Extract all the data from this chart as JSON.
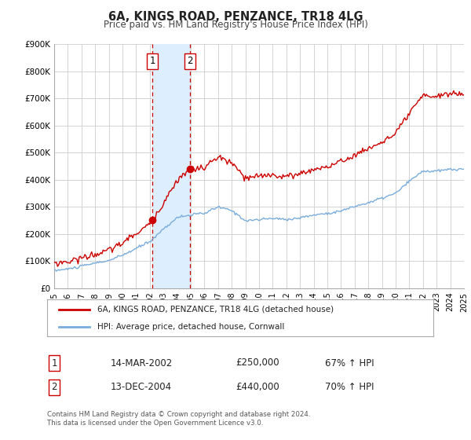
{
  "title": "6A, KINGS ROAD, PENZANCE, TR18 4LG",
  "subtitle": "Price paid vs. HM Land Registry's House Price Index (HPI)",
  "legend_line1": "6A, KINGS ROAD, PENZANCE, TR18 4LG (detached house)",
  "legend_line2": "HPI: Average price, detached house, Cornwall",
  "footer1": "Contains HM Land Registry data © Crown copyright and database right 2024.",
  "footer2": "This data is licensed under the Open Government Licence v3.0.",
  "transaction1_date": "14-MAR-2002",
  "transaction1_price": "£250,000",
  "transaction1_hpi": "67% ↑ HPI",
  "transaction2_date": "13-DEC-2004",
  "transaction2_price": "£440,000",
  "transaction2_hpi": "70% ↑ HPI",
  "sale1_x": 2002.2,
  "sale1_y": 250000,
  "sale2_x": 2004.95,
  "sale2_y": 440000,
  "vline1_x": 2002.2,
  "vline2_x": 2004.95,
  "shade_x1": 2002.2,
  "shade_x2": 2004.95,
  "hpi_color": "#7aaddc",
  "price_color": "#cc0000",
  "sale_dot_color": "#cc0000",
  "vline_color": "#cc0000",
  "shade_color": "#ddeeff",
  "grid_color": "#cccccc",
  "background_color": "#ffffff",
  "ylim_min": 0,
  "ylim_max": 900000,
  "xlim_min": 1995,
  "xlim_max": 2025,
  "yticks": [
    0,
    100000,
    200000,
    300000,
    400000,
    500000,
    600000,
    700000,
    800000,
    900000
  ],
  "ytick_labels": [
    "£0",
    "£100K",
    "£200K",
    "£300K",
    "£400K",
    "£500K",
    "£600K",
    "£700K",
    "£800K",
    "£900K"
  ],
  "xticks": [
    1995,
    1996,
    1997,
    1998,
    1999,
    2000,
    2001,
    2002,
    2003,
    2004,
    2005,
    2006,
    2007,
    2008,
    2009,
    2010,
    2011,
    2012,
    2013,
    2014,
    2015,
    2016,
    2017,
    2018,
    2019,
    2020,
    2021,
    2022,
    2023,
    2024,
    2025
  ],
  "hpi_key_years": [
    1995,
    1996,
    1997,
    1998,
    1999,
    2000,
    2001,
    2002,
    2003,
    2004,
    2005,
    2006,
    2007,
    2008,
    2009,
    2010,
    2011,
    2012,
    2013,
    2014,
    2015,
    2016,
    2017,
    2018,
    2019,
    2020,
    2021,
    2022,
    2023,
    2024,
    2025
  ],
  "hpi_key_vals": [
    65000,
    70000,
    80000,
    90000,
    100000,
    118000,
    143000,
    168000,
    215000,
    258000,
    268000,
    272000,
    295000,
    280000,
    245000,
    248000,
    252000,
    248000,
    255000,
    265000,
    272000,
    282000,
    298000,
    312000,
    328000,
    345000,
    388000,
    425000,
    425000,
    430000,
    430000
  ]
}
